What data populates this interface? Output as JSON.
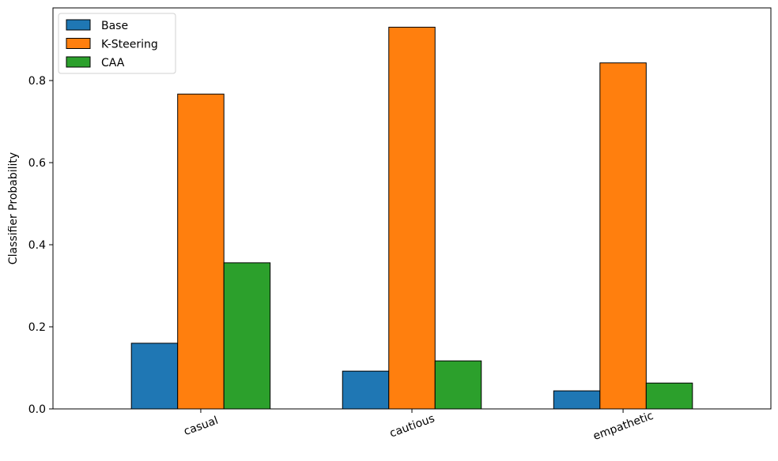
{
  "chart_data": {
    "type": "bar",
    "categories": [
      "casual",
      "cautious",
      "empathetic"
    ],
    "series": [
      {
        "name": "Base",
        "color": "#1f77b4",
        "values": [
          0.16,
          0.092,
          0.044
        ]
      },
      {
        "name": "K-Steering",
        "color": "#ff7f0e",
        "values": [
          0.767,
          0.93,
          0.843
        ]
      },
      {
        "name": "CAA",
        "color": "#2ca02c",
        "values": [
          0.356,
          0.117,
          0.063
        ]
      }
    ],
    "title": "",
    "xlabel": "",
    "ylabel": "Classifier Probability",
    "ylim": [
      0,
      0.977
    ],
    "yticks": [
      0.0,
      0.2,
      0.4,
      0.6,
      0.8
    ],
    "ytick_labels": [
      "0.0",
      "0.2",
      "0.4",
      "0.6",
      "0.8"
    ],
    "grid": false,
    "legend_position": "top-left",
    "xtick_rotation": "rotated"
  }
}
